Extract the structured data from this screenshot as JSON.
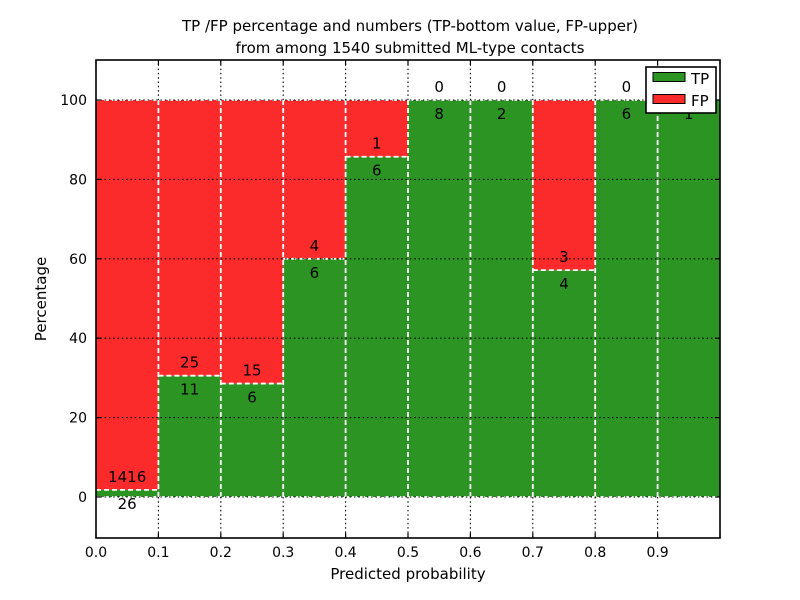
{
  "title": {
    "line1": "TP /FP percentage and numbers (TP-bottom value, FP-upper)",
    "line2": "from among 1540 submitted ML-type contacts"
  },
  "axes": {
    "xlabel": "Predicted probability",
    "ylabel": "Percentage",
    "x_tick_labels": [
      "0.0",
      "0.1",
      "0.2",
      "0.3",
      "0.4",
      "0.5",
      "0.6",
      "0.7",
      "0.8",
      "0.9"
    ],
    "y_tick_labels": [
      "0",
      "20",
      "40",
      "60",
      "80",
      "100"
    ],
    "y_tick_values": [
      0,
      20,
      40,
      60,
      80,
      100
    ]
  },
  "legend": {
    "position": "upper right",
    "items": [
      {
        "label": "TP",
        "color": "#2b9423"
      },
      {
        "label": "FP",
        "color": "#fb2b2b"
      }
    ]
  },
  "colors": {
    "tp": "#2b9423",
    "fp": "#fb2b2b",
    "background": "#ffffff",
    "text": "#000000",
    "grid": "#000000",
    "bar_edge": "#ffffff"
  },
  "chart_data": {
    "type": "bar",
    "stacked": true,
    "normalized_to_percent": true,
    "title": "TP /FP percentage and numbers (TP-bottom value, FP-upper) from among 1540 submitted ML-type contacts",
    "xlabel": "Predicted probability",
    "ylabel": "Percentage",
    "total_submitted_contacts": 1540,
    "bin_edges": [
      0.0,
      0.1,
      0.2,
      0.3,
      0.4,
      0.5,
      0.6,
      0.7,
      0.8,
      0.9,
      1.0
    ],
    "x_tick_labels": [
      "0.0",
      "0.1",
      "0.2",
      "0.3",
      "0.4",
      "0.5",
      "0.6",
      "0.7",
      "0.8",
      "0.9"
    ],
    "y_ticks": [
      0,
      20,
      40,
      60,
      80,
      100
    ],
    "xlim": [
      0.0,
      1.0
    ],
    "ylim": [
      -10.3,
      110.1
    ],
    "grid": true,
    "legend_position": "upper right",
    "series": [
      {
        "name": "TP",
        "color": "#2b9423",
        "counts": [
          26,
          11,
          6,
          6,
          6,
          8,
          2,
          4,
          6,
          1
        ],
        "percent": [
          1.8,
          30.6,
          28.6,
          60.0,
          85.7,
          100.0,
          100.0,
          57.1,
          100.0,
          100.0
        ]
      },
      {
        "name": "FP",
        "color": "#fb2b2b",
        "counts": [
          1416,
          25,
          15,
          4,
          1,
          0,
          0,
          3,
          0,
          0
        ],
        "percent": [
          98.2,
          69.4,
          71.4,
          40.0,
          14.3,
          0.0,
          0.0,
          42.9,
          0.0,
          0.0
        ]
      }
    ]
  }
}
